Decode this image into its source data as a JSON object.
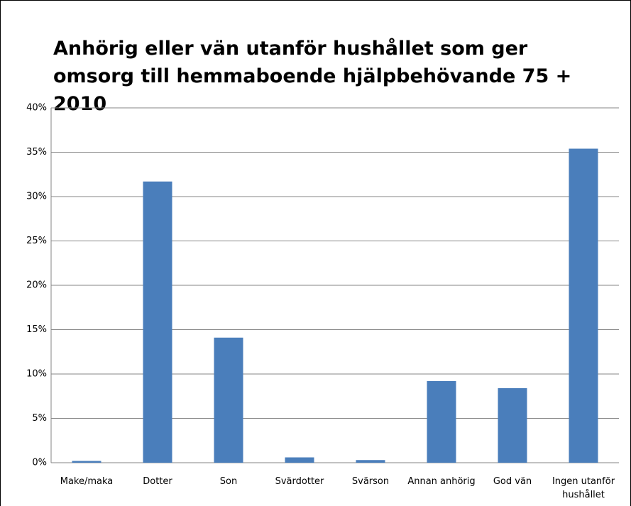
{
  "chart_data": {
    "type": "bar",
    "title": "Anhörig eller vän utanför hushållet som ger omsorg till hemmaboende hjälpbehövande 75 +  2010",
    "categories": [
      "Make/maka",
      "Dotter",
      "Son",
      "Svärdotter",
      "Svärson",
      "Annan anhörig",
      "God vän",
      "Ingen utanför hushållet"
    ],
    "values": [
      0.2,
      31.7,
      14.1,
      0.6,
      0.3,
      9.2,
      8.4,
      35.4
    ],
    "color": "#4a7ebb",
    "ylim": [
      0,
      40
    ],
    "yticks": [
      {
        "value": 0,
        "label": "0%"
      },
      {
        "value": 5,
        "label": "5%"
      },
      {
        "value": 10,
        "label": "10%"
      },
      {
        "value": 15,
        "label": "15%"
      },
      {
        "value": 20,
        "label": "20%"
      },
      {
        "value": 25,
        "label": "25%"
      },
      {
        "value": 30,
        "label": "30%"
      },
      {
        "value": 35,
        "label": "35%"
      },
      {
        "value": 40,
        "label": "40%"
      }
    ],
    "grid": true
  }
}
